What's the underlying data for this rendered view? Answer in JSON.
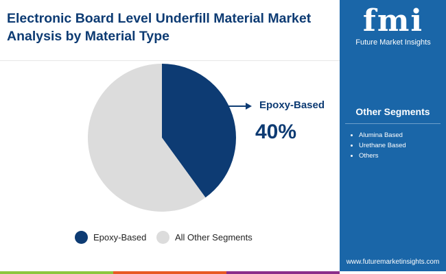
{
  "title": "Electronic Board Level Underfill Material Market Analysis by Material Type",
  "sidebar": {
    "logo_text": "fmi",
    "logo_sub": "Future Market Insights",
    "other_header": "Other Segments",
    "others": [
      "Alumina Based",
      "Urethane Based",
      "Others"
    ],
    "url": "www.futuremarketinsights.com"
  },
  "chart_data": {
    "type": "pie",
    "title": "Electronic Board Level Underfill Material Market Analysis by Material Type",
    "slices": [
      {
        "label": "Epoxy-Based",
        "value": 40,
        "color": "#0d3b73"
      },
      {
        "label": "All Other Segments",
        "value": 60,
        "color": "#dcdcdc"
      }
    ],
    "callout": {
      "label": "Epoxy-Based",
      "value": "40%"
    },
    "legend": "bottom"
  },
  "colors": {
    "bars": [
      "#8cc63f",
      "#e85a24",
      "#8b2d8a"
    ]
  }
}
